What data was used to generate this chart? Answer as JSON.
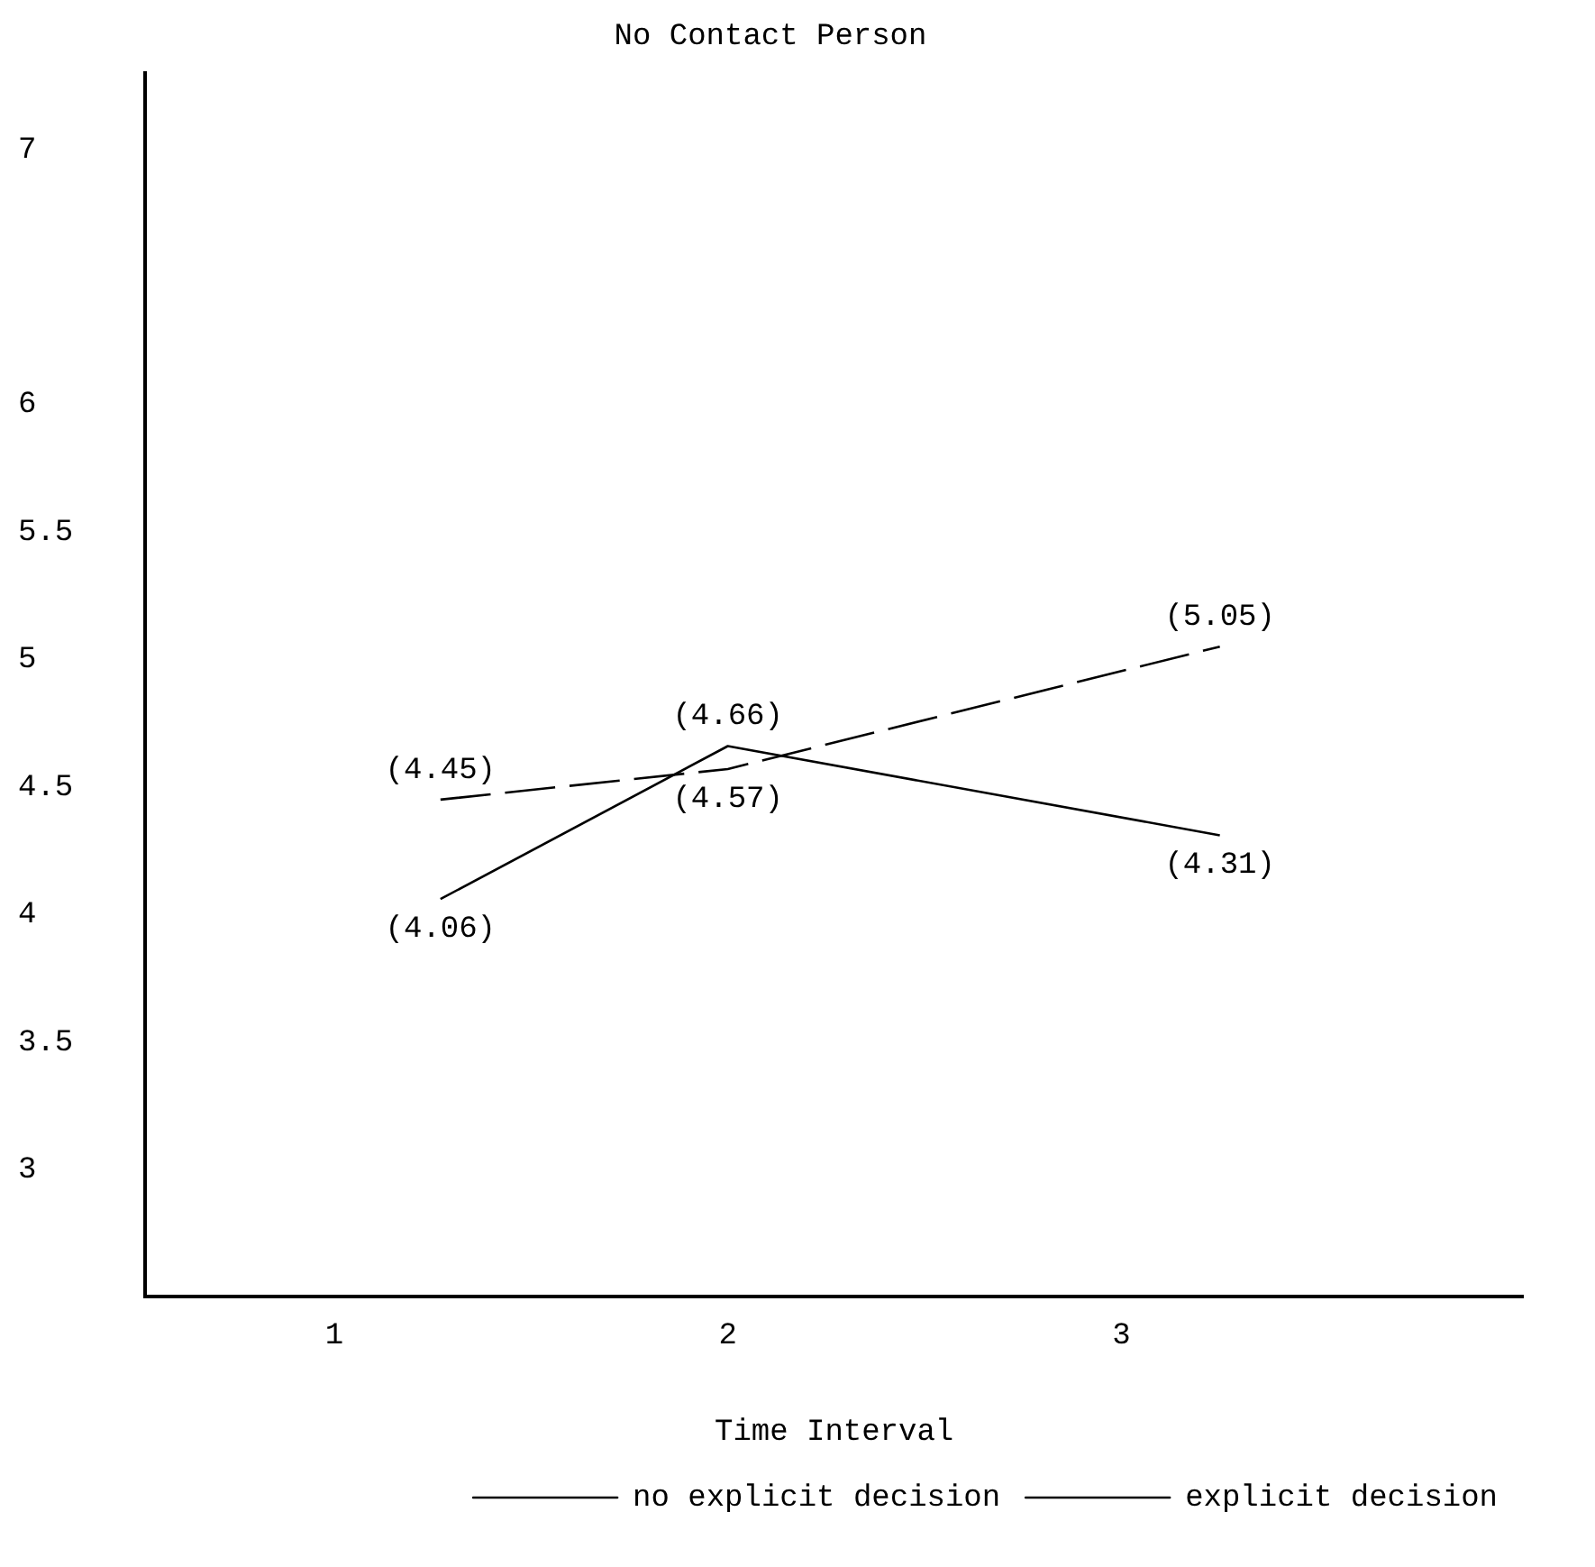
{
  "chart_data": {
    "type": "line",
    "title": "No Contact Person",
    "xlabel": "Time Interval",
    "x": [
      1.27,
      2,
      3.25
    ],
    "xlim": [
      0.52,
      4.02
    ],
    "xticks": [
      1,
      2,
      3
    ],
    "ylim": [
      2.5,
      7.3
    ],
    "yticks": [
      3,
      3.5,
      4,
      4.5,
      5,
      5.5,
      6,
      7
    ],
    "series": [
      {
        "name": "no explicit decision",
        "color": "#000000",
        "line_style": "dashed",
        "values": [
          4.45,
          4.57,
          5.05
        ],
        "value_labels": [
          "(4.45)",
          "(4.57)",
          "(5.05)"
        ]
      },
      {
        "name": "explicit decision",
        "color": "#000000",
        "line_style": "solid",
        "values": [
          4.06,
          4.66,
          4.31
        ],
        "value_labels": [
          "(4.06)",
          "(4.66)",
          "(4.31)"
        ]
      }
    ],
    "grid": false,
    "legend": "bottom right",
    "marker": "none"
  }
}
